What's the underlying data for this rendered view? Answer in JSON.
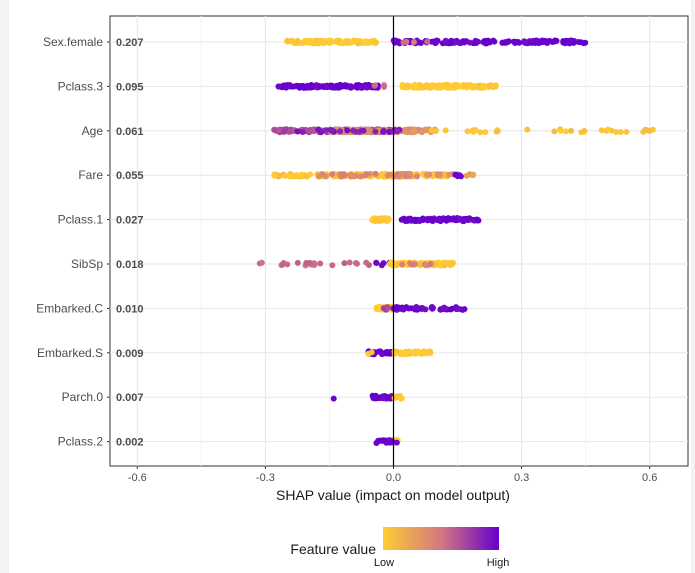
{
  "chart_data": {
    "type": "scatter",
    "subtype": "shap-beeswarm",
    "xlabel": "SHAP value (impact on model output)",
    "xlim": [
      -0.7,
      0.7
    ],
    "xticks": [
      -0.6,
      -0.3,
      0.0,
      0.3,
      0.6
    ],
    "xtick_labels": [
      "-0.6",
      "-0.3",
      "0.0",
      "0.3",
      "0.6"
    ],
    "zero_line": true,
    "grid": true,
    "legend": {
      "title": "Feature value",
      "low_label": "Low",
      "high_label": "High",
      "low_color": "#FFCC33",
      "mid_color": "#D3787F",
      "high_color": "#6600CC",
      "placement": "bottom"
    },
    "features": [
      {
        "name": "Sex.female",
        "mean_abs": "0.207",
        "segments": [
          {
            "from": -0.25,
            "to": -0.04,
            "value": 0.0,
            "n": 120
          },
          {
            "from": 0.0,
            "to": 0.45,
            "value": 1.0,
            "n": 150
          },
          {
            "from": 0.02,
            "to": 0.09,
            "value": 0.5,
            "n": 4
          }
        ]
      },
      {
        "name": "Pclass.3",
        "mean_abs": "0.095",
        "segments": [
          {
            "from": -0.27,
            "to": -0.03,
            "value": 1.0,
            "n": 130
          },
          {
            "from": 0.02,
            "to": 0.24,
            "value": 0.0,
            "n": 120
          },
          {
            "from": -0.05,
            "to": -0.01,
            "value": 0.5,
            "n": 4
          }
        ]
      },
      {
        "name": "Age",
        "mean_abs": "0.061",
        "segments": [
          {
            "from": -0.28,
            "to": 0.0,
            "value": 0.7,
            "n": 140
          },
          {
            "from": -0.15,
            "to": 0.1,
            "value": 0.35,
            "n": 120
          },
          {
            "from": 0.05,
            "to": 0.61,
            "value": 0.05,
            "n": 35
          },
          {
            "from": -0.25,
            "to": 0.03,
            "value": 0.9,
            "n": 25
          }
        ]
      },
      {
        "name": "Fare",
        "mean_abs": "0.055",
        "segments": [
          {
            "from": -0.28,
            "to": 0.13,
            "value": 0.05,
            "n": 170
          },
          {
            "from": -0.18,
            "to": 0.18,
            "value": 0.4,
            "n": 45
          },
          {
            "from": 0.14,
            "to": 0.17,
            "value": 1.0,
            "n": 4
          },
          {
            "from": 0.17,
            "to": 0.21,
            "value": 0.2,
            "n": 3
          }
        ]
      },
      {
        "name": "Pclass.1",
        "mean_abs": "0.027",
        "segments": [
          {
            "from": -0.05,
            "to": -0.01,
            "value": 0.0,
            "n": 60
          },
          {
            "from": 0.01,
            "to": 0.2,
            "value": 1.0,
            "n": 80
          }
        ]
      },
      {
        "name": "SibSp",
        "mean_abs": "0.018",
        "segments": [
          {
            "from": -0.32,
            "to": -0.05,
            "value": 0.55,
            "n": 22
          },
          {
            "from": -0.05,
            "to": 0.0,
            "value": 1.0,
            "n": 6
          },
          {
            "from": -0.01,
            "to": 0.14,
            "value": 0.02,
            "n": 90
          },
          {
            "from": 0.02,
            "to": 0.09,
            "value": 0.45,
            "n": 8
          }
        ]
      },
      {
        "name": "Embarked.C",
        "mean_abs": "0.010",
        "segments": [
          {
            "from": -0.04,
            "to": 0.0,
            "value": 0.0,
            "n": 60
          },
          {
            "from": 0.0,
            "to": 0.17,
            "value": 1.0,
            "n": 45
          },
          {
            "from": -0.03,
            "to": 0.0,
            "value": 0.7,
            "n": 4
          }
        ]
      },
      {
        "name": "Embarked.S",
        "mean_abs": "0.009",
        "segments": [
          {
            "from": -0.06,
            "to": 0.0,
            "value": 1.0,
            "n": 35
          },
          {
            "from": 0.0,
            "to": 0.09,
            "value": 0.0,
            "n": 40
          },
          {
            "from": -0.07,
            "to": -0.05,
            "value": 0.0,
            "n": 2
          }
        ]
      },
      {
        "name": "Parch.0",
        "mean_abs": "0.007",
        "segments": [
          {
            "from": -0.14,
            "to": -0.14,
            "value": 1.0,
            "n": 1
          },
          {
            "from": -0.05,
            "to": 0.0,
            "value": 1.0,
            "n": 30
          },
          {
            "from": 0.0,
            "to": 0.02,
            "value": 0.0,
            "n": 12
          }
        ]
      },
      {
        "name": "Pclass.2",
        "mean_abs": "0.002",
        "segments": [
          {
            "from": -0.01,
            "to": 0.01,
            "value": 0.0,
            "n": 30
          },
          {
            "from": -0.04,
            "to": 0.01,
            "value": 1.0,
            "n": 20
          }
        ]
      }
    ]
  }
}
